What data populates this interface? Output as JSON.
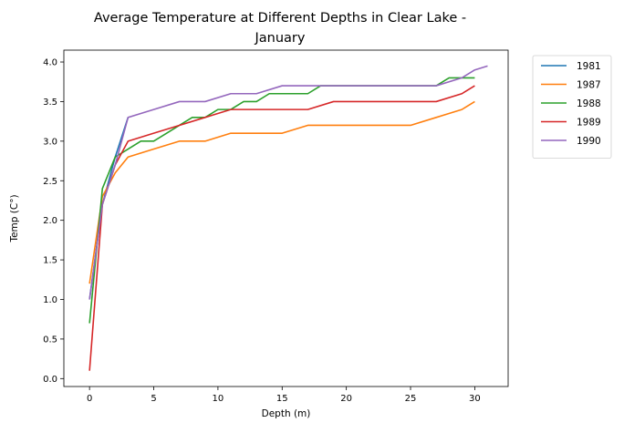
{
  "chart_data": {
    "type": "line",
    "title_lines": [
      "Average Temperature at Different Depths in Clear Lake -",
      "January"
    ],
    "xlabel": "Depth (m)",
    "ylabel": "Temp (C°)",
    "xlim": [
      -2,
      32.6
    ],
    "ylim": [
      -0.1,
      4.15
    ],
    "xticks": [
      0,
      5,
      10,
      15,
      20,
      25,
      30
    ],
    "yticks": [
      0.0,
      0.5,
      1.0,
      1.5,
      2.0,
      2.5,
      3.0,
      3.5,
      4.0
    ],
    "xtick_labels": [
      "0",
      "5",
      "10",
      "15",
      "20",
      "25",
      "30"
    ],
    "ytick_labels": [
      "0.0",
      "0.5",
      "1.0",
      "1.5",
      "2.0",
      "2.5",
      "3.0",
      "3.5",
      "4.0"
    ],
    "grid": false,
    "legend_position": "outside-top-right",
    "series": [
      {
        "name": "1981",
        "color": "#1f77b4",
        "points": [
          [
            0,
            1.0
          ],
          [
            1,
            2.2
          ],
          [
            2,
            2.8
          ],
          [
            3,
            3.3
          ]
        ]
      },
      {
        "name": "1987",
        "color": "#ff7f0e",
        "points": [
          [
            0,
            1.2
          ],
          [
            1,
            2.3
          ],
          [
            2,
            2.6
          ],
          [
            3,
            2.8
          ],
          [
            5,
            2.9
          ],
          [
            7,
            3.0
          ],
          [
            9,
            3.0
          ],
          [
            11,
            3.1
          ],
          [
            13,
            3.1
          ],
          [
            15,
            3.1
          ],
          [
            17,
            3.2
          ],
          [
            19,
            3.2
          ],
          [
            21,
            3.2
          ],
          [
            23,
            3.2
          ],
          [
            25,
            3.2
          ],
          [
            27,
            3.3
          ],
          [
            29,
            3.4
          ],
          [
            30,
            3.5
          ]
        ]
      },
      {
        "name": "1988",
        "color": "#2ca02c",
        "points": [
          [
            0,
            0.7
          ],
          [
            1,
            2.4
          ],
          [
            2,
            2.8
          ],
          [
            3,
            2.9
          ],
          [
            4,
            3.0
          ],
          [
            5,
            3.0
          ],
          [
            6,
            3.1
          ],
          [
            7,
            3.2
          ],
          [
            8,
            3.3
          ],
          [
            9,
            3.3
          ],
          [
            10,
            3.4
          ],
          [
            11,
            3.4
          ],
          [
            12,
            3.5
          ],
          [
            13,
            3.5
          ],
          [
            14,
            3.6
          ],
          [
            15,
            3.6
          ],
          [
            16,
            3.6
          ],
          [
            17,
            3.6
          ],
          [
            18,
            3.7
          ],
          [
            19,
            3.7
          ],
          [
            20,
            3.7
          ],
          [
            21,
            3.7
          ],
          [
            22,
            3.7
          ],
          [
            23,
            3.7
          ],
          [
            24,
            3.7
          ],
          [
            25,
            3.7
          ],
          [
            26,
            3.7
          ],
          [
            27,
            3.7
          ],
          [
            28,
            3.8
          ],
          [
            29,
            3.8
          ],
          [
            30,
            3.8
          ]
        ]
      },
      {
        "name": "1989",
        "color": "#d62728",
        "points": [
          [
            0,
            0.1
          ],
          [
            1,
            2.2
          ],
          [
            2,
            2.7
          ],
          [
            3,
            3.0
          ],
          [
            5,
            3.1
          ],
          [
            7,
            3.2
          ],
          [
            9,
            3.3
          ],
          [
            11,
            3.4
          ],
          [
            13,
            3.4
          ],
          [
            15,
            3.4
          ],
          [
            17,
            3.4
          ],
          [
            19,
            3.5
          ],
          [
            21,
            3.5
          ],
          [
            23,
            3.5
          ],
          [
            25,
            3.5
          ],
          [
            27,
            3.5
          ],
          [
            29,
            3.6
          ],
          [
            30,
            3.7
          ]
        ]
      },
      {
        "name": "1990",
        "color": "#9467bd",
        "points": [
          [
            0,
            1.0
          ],
          [
            1,
            2.2
          ],
          [
            2,
            2.7
          ],
          [
            3,
            3.3
          ],
          [
            5,
            3.4
          ],
          [
            7,
            3.5
          ],
          [
            9,
            3.5
          ],
          [
            11,
            3.6
          ],
          [
            13,
            3.6
          ],
          [
            15,
            3.7
          ],
          [
            17,
            3.7
          ],
          [
            19,
            3.7
          ],
          [
            21,
            3.7
          ],
          [
            23,
            3.7
          ],
          [
            25,
            3.7
          ],
          [
            27,
            3.7
          ],
          [
            29,
            3.8
          ],
          [
            30,
            3.9
          ],
          [
            31,
            3.95
          ]
        ]
      }
    ]
  }
}
